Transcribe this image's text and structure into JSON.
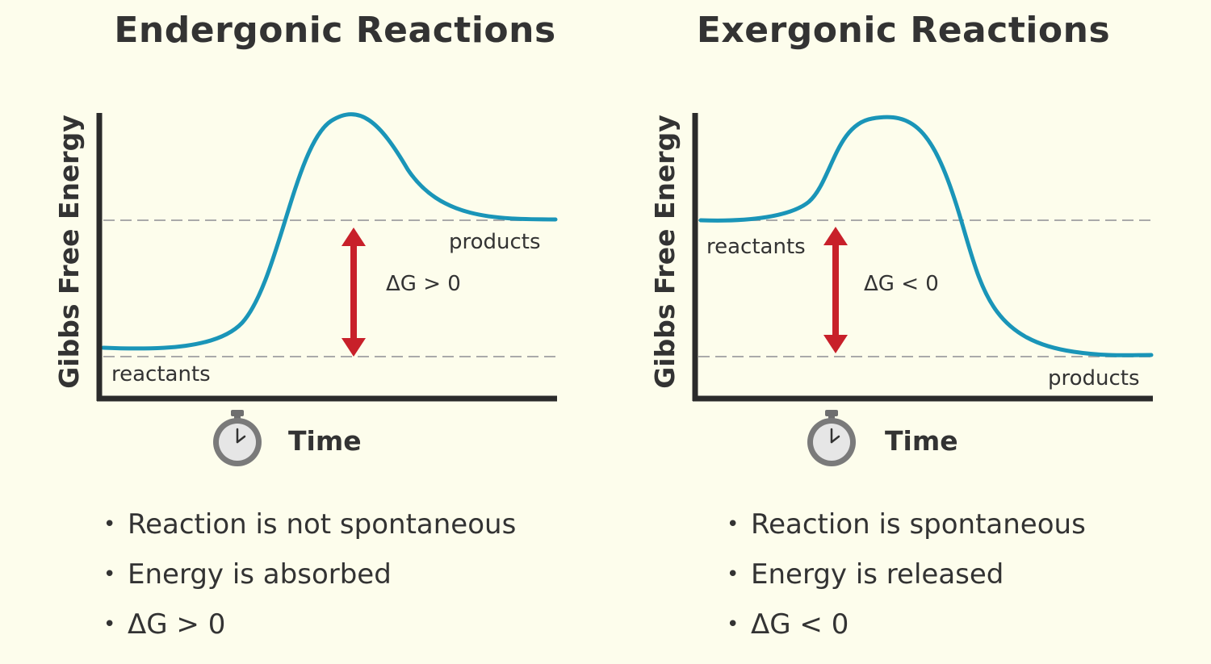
{
  "colors": {
    "background": "#fdfdec",
    "axis": "#2b2b2b",
    "curve": "#1a95b8",
    "arrow": "#c8202a",
    "dashed": "#aaaaaa",
    "text": "#333333"
  },
  "panels": [
    {
      "title": "Endergonic Reactions",
      "y_axis_label": "Gibbs Free Energy",
      "x_axis_label": "Time",
      "x_axis_icon": "stopwatch-icon",
      "reactants_label": "reactants",
      "products_label": "products",
      "delta_label": "ΔG > 0",
      "bullets": [
        "Reaction is not spontaneous",
        "Energy is absorbed",
        "ΔG > 0"
      ]
    },
    {
      "title": "Exergonic Reactions",
      "y_axis_label": "Gibbs Free Energy",
      "x_axis_label": "Time",
      "x_axis_icon": "stopwatch-icon",
      "reactants_label": "reactants",
      "products_label": "products",
      "delta_label": "ΔG < 0",
      "bullets": [
        "Reaction is spontaneous",
        "Energy is released",
        "ΔG < 0"
      ]
    }
  ]
}
